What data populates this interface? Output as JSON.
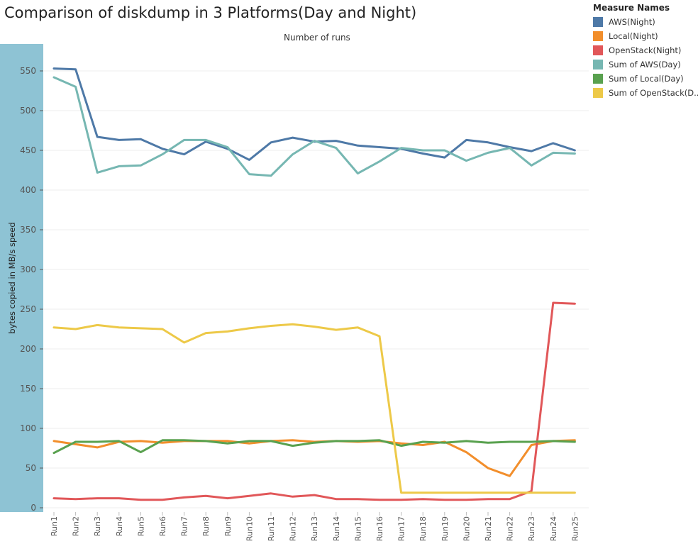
{
  "chart_data": {
    "type": "line",
    "title": "Comparison of diskdump in 3 Platforms(Day and Night)",
    "top_axis_title": "Number of runs",
    "ylabel": "bytes copied in MB/s speed",
    "ylim": [
      0,
      575
    ],
    "yticks": [
      0,
      50,
      100,
      150,
      200,
      250,
      300,
      350,
      400,
      450,
      500,
      550
    ],
    "categories": [
      "Run1",
      "Run2",
      "Run3",
      "Run4",
      "Run5",
      "Run6",
      "Run7",
      "Run8",
      "Run9",
      "Run10",
      "Run11",
      "Run12",
      "Run13",
      "Run14",
      "Run15",
      "Run16",
      "Run17",
      "Run18",
      "Run19",
      "Run20",
      "Run21",
      "Run22",
      "Run23",
      "Run24",
      "Run25"
    ],
    "grid": true,
    "legend_title": "Measure Names",
    "legend_position": "top-right",
    "series": [
      {
        "name": "AWS(Night)",
        "color": "#4e79a7",
        "values": [
          553,
          552,
          467,
          463,
          464,
          452,
          445,
          461,
          452,
          438,
          460,
          466,
          461,
          462,
          456,
          454,
          452,
          446,
          441,
          463,
          460,
          454,
          449,
          459,
          450
        ]
      },
      {
        "name": "Local(Night)",
        "color": "#f28e2b",
        "values": [
          84,
          80,
          76,
          83,
          84,
          82,
          84,
          84,
          84,
          81,
          84,
          85,
          83,
          84,
          83,
          84,
          81,
          79,
          83,
          70,
          50,
          40,
          79,
          84,
          85
        ]
      },
      {
        "name": "OpenStack(Night)",
        "color": "#e15759",
        "values": [
          12,
          11,
          12,
          12,
          10,
          10,
          13,
          15,
          12,
          15,
          18,
          14,
          16,
          11,
          11,
          10,
          10,
          11,
          10,
          10,
          11,
          11,
          21,
          258,
          257
        ]
      },
      {
        "name": "Sum of AWS(Day)",
        "color": "#76b7b2",
        "values": [
          542,
          530,
          422,
          430,
          431,
          445,
          463,
          463,
          454,
          420,
          418,
          445,
          462,
          453,
          421,
          436,
          453,
          450,
          450,
          437,
          447,
          453,
          431,
          447,
          446
        ]
      },
      {
        "name": "Sum of Local(Day)",
        "color": "#59a14f",
        "values": [
          69,
          83,
          83,
          84,
          70,
          85,
          85,
          84,
          81,
          84,
          84,
          78,
          82,
          84,
          84,
          85,
          78,
          83,
          82,
          84,
          82,
          83,
          83,
          84,
          83
        ]
      },
      {
        "name": "Sum of OpenStack(D..",
        "color": "#edc948",
        "values": [
          227,
          225,
          230,
          227,
          226,
          225,
          208,
          220,
          222,
          226,
          229,
          231,
          228,
          224,
          227,
          216,
          19,
          19,
          19,
          19,
          19,
          19,
          19,
          19,
          19
        ]
      }
    ]
  }
}
